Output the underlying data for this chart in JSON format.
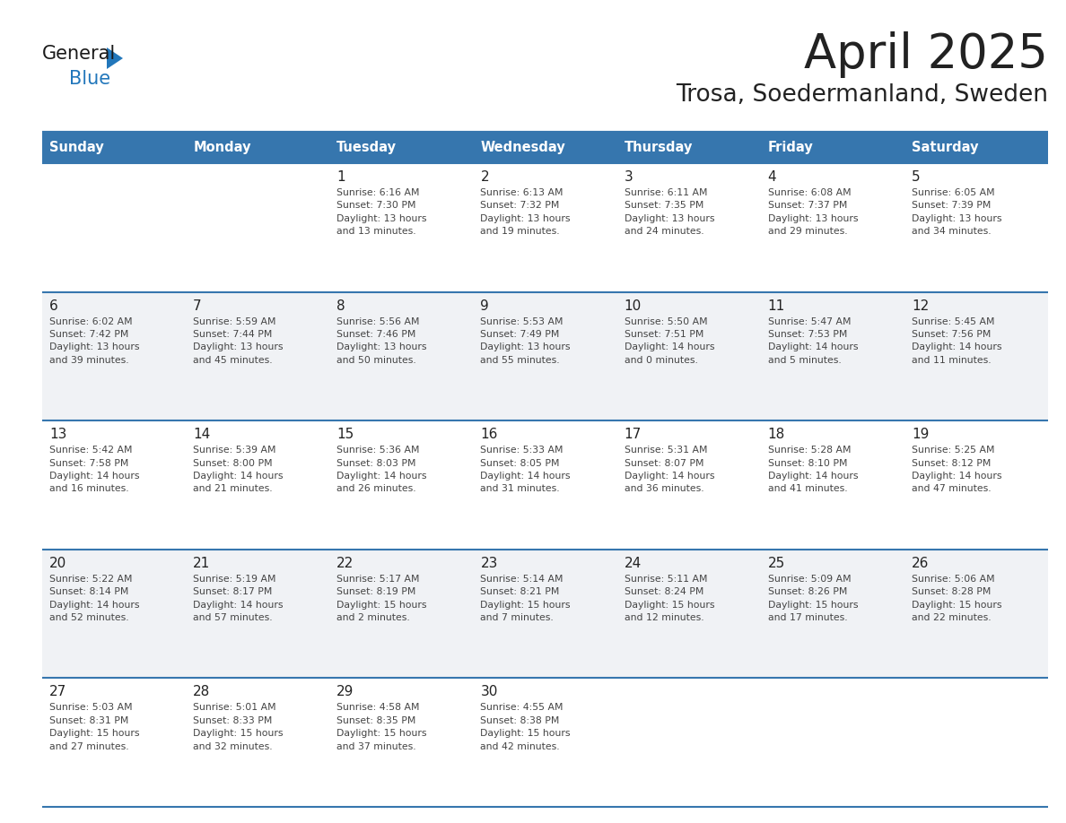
{
  "title": "April 2025",
  "subtitle": "Trosa, Soedermanland, Sweden",
  "days_of_week": [
    "Sunday",
    "Monday",
    "Tuesday",
    "Wednesday",
    "Thursday",
    "Friday",
    "Saturday"
  ],
  "header_bg_color": "#3676ae",
  "header_text_color": "#ffffff",
  "row_bg_white": "#ffffff",
  "row_bg_gray": "#f0f2f5",
  "border_color": "#3676ae",
  "day_number_color": "#222222",
  "day_text_color": "#444444",
  "title_color": "#222222",
  "subtitle_color": "#222222",
  "logo_general_color": "#1a1a1a",
  "logo_blue_color": "#2277bb",
  "weeks": [
    [
      {
        "day": null,
        "info": null
      },
      {
        "day": null,
        "info": null
      },
      {
        "day": "1",
        "info": "Sunrise: 6:16 AM\nSunset: 7:30 PM\nDaylight: 13 hours\nand 13 minutes."
      },
      {
        "day": "2",
        "info": "Sunrise: 6:13 AM\nSunset: 7:32 PM\nDaylight: 13 hours\nand 19 minutes."
      },
      {
        "day": "3",
        "info": "Sunrise: 6:11 AM\nSunset: 7:35 PM\nDaylight: 13 hours\nand 24 minutes."
      },
      {
        "day": "4",
        "info": "Sunrise: 6:08 AM\nSunset: 7:37 PM\nDaylight: 13 hours\nand 29 minutes."
      },
      {
        "day": "5",
        "info": "Sunrise: 6:05 AM\nSunset: 7:39 PM\nDaylight: 13 hours\nand 34 minutes."
      }
    ],
    [
      {
        "day": "6",
        "info": "Sunrise: 6:02 AM\nSunset: 7:42 PM\nDaylight: 13 hours\nand 39 minutes."
      },
      {
        "day": "7",
        "info": "Sunrise: 5:59 AM\nSunset: 7:44 PM\nDaylight: 13 hours\nand 45 minutes."
      },
      {
        "day": "8",
        "info": "Sunrise: 5:56 AM\nSunset: 7:46 PM\nDaylight: 13 hours\nand 50 minutes."
      },
      {
        "day": "9",
        "info": "Sunrise: 5:53 AM\nSunset: 7:49 PM\nDaylight: 13 hours\nand 55 minutes."
      },
      {
        "day": "10",
        "info": "Sunrise: 5:50 AM\nSunset: 7:51 PM\nDaylight: 14 hours\nand 0 minutes."
      },
      {
        "day": "11",
        "info": "Sunrise: 5:47 AM\nSunset: 7:53 PM\nDaylight: 14 hours\nand 5 minutes."
      },
      {
        "day": "12",
        "info": "Sunrise: 5:45 AM\nSunset: 7:56 PM\nDaylight: 14 hours\nand 11 minutes."
      }
    ],
    [
      {
        "day": "13",
        "info": "Sunrise: 5:42 AM\nSunset: 7:58 PM\nDaylight: 14 hours\nand 16 minutes."
      },
      {
        "day": "14",
        "info": "Sunrise: 5:39 AM\nSunset: 8:00 PM\nDaylight: 14 hours\nand 21 minutes."
      },
      {
        "day": "15",
        "info": "Sunrise: 5:36 AM\nSunset: 8:03 PM\nDaylight: 14 hours\nand 26 minutes."
      },
      {
        "day": "16",
        "info": "Sunrise: 5:33 AM\nSunset: 8:05 PM\nDaylight: 14 hours\nand 31 minutes."
      },
      {
        "day": "17",
        "info": "Sunrise: 5:31 AM\nSunset: 8:07 PM\nDaylight: 14 hours\nand 36 minutes."
      },
      {
        "day": "18",
        "info": "Sunrise: 5:28 AM\nSunset: 8:10 PM\nDaylight: 14 hours\nand 41 minutes."
      },
      {
        "day": "19",
        "info": "Sunrise: 5:25 AM\nSunset: 8:12 PM\nDaylight: 14 hours\nand 47 minutes."
      }
    ],
    [
      {
        "day": "20",
        "info": "Sunrise: 5:22 AM\nSunset: 8:14 PM\nDaylight: 14 hours\nand 52 minutes."
      },
      {
        "day": "21",
        "info": "Sunrise: 5:19 AM\nSunset: 8:17 PM\nDaylight: 14 hours\nand 57 minutes."
      },
      {
        "day": "22",
        "info": "Sunrise: 5:17 AM\nSunset: 8:19 PM\nDaylight: 15 hours\nand 2 minutes."
      },
      {
        "day": "23",
        "info": "Sunrise: 5:14 AM\nSunset: 8:21 PM\nDaylight: 15 hours\nand 7 minutes."
      },
      {
        "day": "24",
        "info": "Sunrise: 5:11 AM\nSunset: 8:24 PM\nDaylight: 15 hours\nand 12 minutes."
      },
      {
        "day": "25",
        "info": "Sunrise: 5:09 AM\nSunset: 8:26 PM\nDaylight: 15 hours\nand 17 minutes."
      },
      {
        "day": "26",
        "info": "Sunrise: 5:06 AM\nSunset: 8:28 PM\nDaylight: 15 hours\nand 22 minutes."
      }
    ],
    [
      {
        "day": "27",
        "info": "Sunrise: 5:03 AM\nSunset: 8:31 PM\nDaylight: 15 hours\nand 27 minutes."
      },
      {
        "day": "28",
        "info": "Sunrise: 5:01 AM\nSunset: 8:33 PM\nDaylight: 15 hours\nand 32 minutes."
      },
      {
        "day": "29",
        "info": "Sunrise: 4:58 AM\nSunset: 8:35 PM\nDaylight: 15 hours\nand 37 minutes."
      },
      {
        "day": "30",
        "info": "Sunrise: 4:55 AM\nSunset: 8:38 PM\nDaylight: 15 hours\nand 42 minutes."
      },
      {
        "day": null,
        "info": null
      },
      {
        "day": null,
        "info": null
      },
      {
        "day": null,
        "info": null
      }
    ]
  ]
}
